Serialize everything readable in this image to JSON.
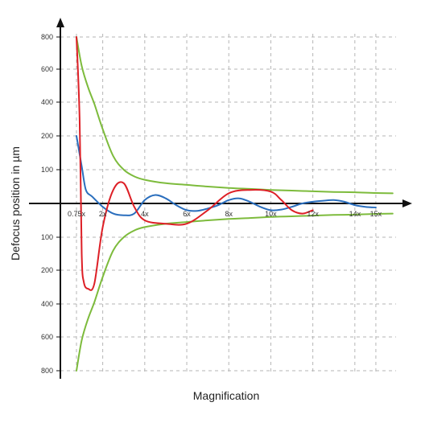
{
  "chart_data": {
    "type": "line",
    "title": "",
    "xlabel": "Magnification",
    "ylabel": "Defocus position in µm",
    "x_ticks": [
      {
        "value": 0.75,
        "label": "0.75x"
      },
      {
        "value": 2,
        "label": "2x"
      },
      {
        "value": 4,
        "label": "4x"
      },
      {
        "value": 6,
        "label": "6x"
      },
      {
        "value": 8,
        "label": "8x"
      },
      {
        "value": 10,
        "label": "10x"
      },
      {
        "value": 12,
        "label": "12x"
      },
      {
        "value": 14,
        "label": "14x"
      },
      {
        "value": 15,
        "label": "15x"
      }
    ],
    "y_ticks_upper": [
      {
        "value": 800,
        "label": "800"
      },
      {
        "value": 600,
        "label": "600"
      },
      {
        "value": 400,
        "label": "400"
      },
      {
        "value": 200,
        "label": "200"
      },
      {
        "value": 100,
        "label": "100"
      }
    ],
    "y_ticks_lower": [
      {
        "value": -100,
        "label": "100"
      },
      {
        "value": -200,
        "label": "200"
      },
      {
        "value": -400,
        "label": "400"
      },
      {
        "value": -600,
        "label": "600"
      },
      {
        "value": -800,
        "label": "800"
      }
    ],
    "xlim": [
      0,
      16.4
    ],
    "ylim": [
      -800,
      800
    ],
    "grid": true,
    "legend": false,
    "series": [
      {
        "color": "#7dbb3c",
        "x": [
          0.75,
          1.0,
          1.3,
          1.6,
          2.0,
          2.5,
          3.0,
          3.5,
          4.0,
          5.0,
          6.0,
          7.0,
          8.0,
          9.0,
          10.0,
          11.0,
          12.0,
          13.0,
          14.0,
          15.0,
          15.8
        ],
        "y": [
          800,
          620,
          490,
          390,
          240,
          140,
          100,
          80,
          70,
          60,
          55,
          50,
          46,
          43,
          40,
          38,
          36,
          34,
          33,
          31,
          30
        ]
      },
      {
        "color": "#7dbb3c",
        "x": [
          0.75,
          1.0,
          1.3,
          1.6,
          2.0,
          2.5,
          3.0,
          3.5,
          4.0,
          5.0,
          6.0,
          7.0,
          8.0,
          9.0,
          10.0,
          11.0,
          12.0,
          13.0,
          14.0,
          15.0,
          15.8
        ],
        "y": [
          -800,
          -620,
          -490,
          -390,
          -240,
          -140,
          -100,
          -80,
          -70,
          -60,
          -55,
          -50,
          -46,
          -43,
          -40,
          -38,
          -36,
          -34,
          -33,
          -31,
          -30
        ]
      },
      {
        "color": "#2a6ebd",
        "x": [
          0.75,
          1.0,
          1.2,
          1.5,
          2.0,
          2.5,
          3.0,
          3.5,
          4.0,
          4.5,
          5.0,
          5.5,
          6.0,
          6.5,
          7.0,
          7.5,
          8.0,
          8.5,
          9.0,
          9.5,
          10.0,
          10.5,
          11.0,
          11.5,
          12.0,
          12.5,
          13.0,
          13.5,
          14.0,
          14.5,
          15.0
        ],
        "y": [
          200,
          110,
          40,
          20,
          -10,
          -30,
          -35,
          -30,
          10,
          25,
          15,
          -5,
          -20,
          -22,
          -15,
          -5,
          10,
          15,
          5,
          -10,
          -20,
          -18,
          -10,
          0,
          5,
          8,
          10,
          5,
          -5,
          -10,
          -12
        ]
      },
      {
        "color": "#dd1f26",
        "x": [
          0.75,
          0.9,
          1.0,
          1.1,
          1.3,
          1.6,
          2.0,
          2.5,
          3.0,
          3.5,
          4.0,
          5.0,
          6.0,
          7.0,
          8.0,
          9.0,
          10.0,
          10.5,
          11.0,
          11.5,
          12.0
        ],
        "y": [
          800,
          300,
          -150,
          -270,
          -310,
          -280,
          -70,
          40,
          60,
          -10,
          -50,
          -60,
          -60,
          -20,
          30,
          40,
          35,
          10,
          -20,
          -30,
          -20
        ]
      }
    ]
  }
}
